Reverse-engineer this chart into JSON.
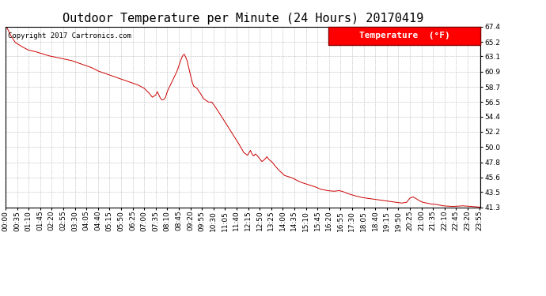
{
  "title": "Outdoor Temperature per Minute (24 Hours) 20170419",
  "copyright_text": "Copyright 2017 Cartronics.com",
  "legend_label": "Temperature  (°F)",
  "line_color": "#cc0000",
  "background_color": "#ffffff",
  "grid_color": "#bbbbbb",
  "ylim": [
    41.3,
    67.4
  ],
  "yticks": [
    41.3,
    43.5,
    45.6,
    47.8,
    50.0,
    52.2,
    54.4,
    56.5,
    58.7,
    60.9,
    63.1,
    65.2,
    67.4
  ],
  "title_fontsize": 11,
  "legend_fontsize": 8,
  "tick_fontsize": 6.5,
  "total_minutes": 1440,
  "x_tick_interval": 35,
  "keypoints": [
    [
      0,
      67.4
    ],
    [
      5,
      67.2
    ],
    [
      15,
      66.2
    ],
    [
      30,
      65.1
    ],
    [
      50,
      64.5
    ],
    [
      70,
      64.0
    ],
    [
      90,
      63.8
    ],
    [
      110,
      63.5
    ],
    [
      130,
      63.2
    ],
    [
      150,
      63.0
    ],
    [
      170,
      62.8
    ],
    [
      200,
      62.5
    ],
    [
      230,
      62.0
    ],
    [
      260,
      61.5
    ],
    [
      280,
      61.0
    ],
    [
      310,
      60.5
    ],
    [
      340,
      60.0
    ],
    [
      370,
      59.5
    ],
    [
      400,
      59.0
    ],
    [
      420,
      58.5
    ],
    [
      435,
      57.8
    ],
    [
      445,
      57.2
    ],
    [
      455,
      57.5
    ],
    [
      460,
      58.0
    ],
    [
      465,
      57.5
    ],
    [
      470,
      57.0
    ],
    [
      475,
      56.8
    ],
    [
      480,
      56.9
    ],
    [
      485,
      57.2
    ],
    [
      490,
      58.0
    ],
    [
      500,
      59.0
    ],
    [
      510,
      60.0
    ],
    [
      520,
      61.0
    ],
    [
      527,
      62.0
    ],
    [
      533,
      62.8
    ],
    [
      538,
      63.3
    ],
    [
      542,
      63.4
    ],
    [
      546,
      63.0
    ],
    [
      550,
      62.5
    ],
    [
      555,
      61.5
    ],
    [
      560,
      60.5
    ],
    [
      565,
      59.5
    ],
    [
      570,
      58.8
    ],
    [
      580,
      58.5
    ],
    [
      590,
      57.8
    ],
    [
      600,
      57.0
    ],
    [
      615,
      56.5
    ],
    [
      625,
      56.5
    ],
    [
      640,
      55.5
    ],
    [
      660,
      54.0
    ],
    [
      680,
      52.5
    ],
    [
      700,
      51.0
    ],
    [
      715,
      49.8
    ],
    [
      722,
      49.2
    ],
    [
      728,
      49.0
    ],
    [
      733,
      48.8
    ],
    [
      737,
      49.1
    ],
    [
      742,
      49.5
    ],
    [
      747,
      49.0
    ],
    [
      752,
      48.7
    ],
    [
      757,
      49.0
    ],
    [
      762,
      48.8
    ],
    [
      767,
      48.5
    ],
    [
      772,
      48.2
    ],
    [
      777,
      47.9
    ],
    [
      785,
      48.2
    ],
    [
      792,
      48.6
    ],
    [
      798,
      48.2
    ],
    [
      808,
      47.8
    ],
    [
      825,
      46.8
    ],
    [
      845,
      45.9
    ],
    [
      865,
      45.6
    ],
    [
      895,
      44.9
    ],
    [
      915,
      44.6
    ],
    [
      935,
      44.3
    ],
    [
      955,
      43.9
    ],
    [
      975,
      43.7
    ],
    [
      995,
      43.6
    ],
    [
      1010,
      43.7
    ],
    [
      1020,
      43.6
    ],
    [
      1035,
      43.3
    ],
    [
      1055,
      43.0
    ],
    [
      1080,
      42.7
    ],
    [
      1110,
      42.5
    ],
    [
      1140,
      42.3
    ],
    [
      1170,
      42.1
    ],
    [
      1200,
      41.9
    ],
    [
      1215,
      42.0
    ],
    [
      1225,
      42.6
    ],
    [
      1235,
      42.8
    ],
    [
      1245,
      42.5
    ],
    [
      1255,
      42.2
    ],
    [
      1265,
      42.0
    ],
    [
      1285,
      41.8
    ],
    [
      1305,
      41.7
    ],
    [
      1325,
      41.5
    ],
    [
      1355,
      41.4
    ],
    [
      1385,
      41.5
    ],
    [
      1415,
      41.4
    ],
    [
      1439,
      41.3
    ]
  ]
}
